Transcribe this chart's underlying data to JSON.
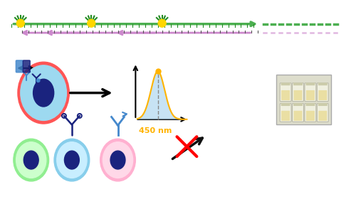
{
  "bg_color": "#ffffff",
  "green_line_color": "#4CAF50",
  "purple_line_color": "#CC88CC",
  "gold_nanoparticle_color": "#FFD700",
  "gold_stem_color": "#228B22",
  "cell_outer_colors": [
    "#FF4444",
    "#66CCFF",
    "#FF99CC"
  ],
  "cell_inner_color": "#87CEEB",
  "cell_nucleus_color": "#1a237e",
  "green_cell_color": "#90EE90",
  "green_cell_border": "#228B22",
  "antibody_color_dark": "#1a237e",
  "antibody_color_light": "#4488CC",
  "peak_label": "450 nm",
  "peak_color": "#FFB300",
  "plot_fill_color": "#B0D8F0",
  "arrow_color": "#000000",
  "red_x_color": "#FF0000",
  "tick_color": "#555555"
}
